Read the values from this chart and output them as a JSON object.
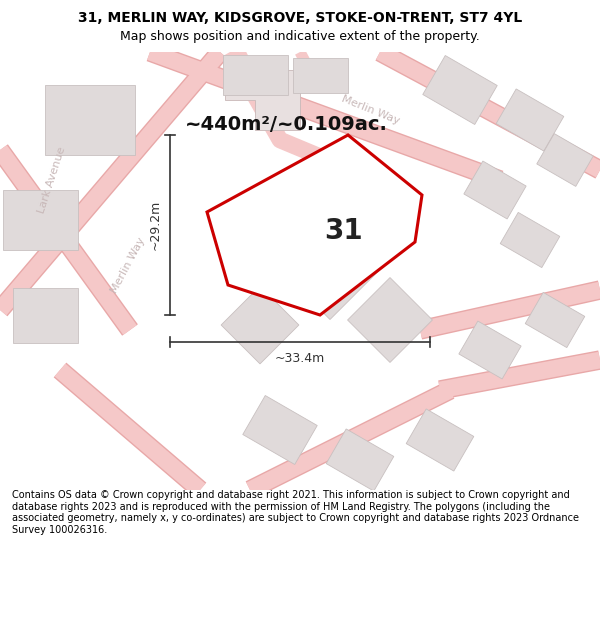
{
  "title_line1": "31, MERLIN WAY, KIDSGROVE, STOKE-ON-TRENT, ST7 4YL",
  "title_line2": "Map shows position and indicative extent of the property.",
  "area_text": "~440m²/~0.109ac.",
  "label_number": "31",
  "dim_width": "~33.4m",
  "dim_height": "~29.2m",
  "footer_text": "Contains OS data © Crown copyright and database right 2021. This information is subject to Crown copyright and database rights 2023 and is reproduced with the permission of HM Land Registry. The polygons (including the associated geometry, namely x, y co-ordinates) are subject to Crown copyright and database rights 2023 Ordnance Survey 100026316.",
  "bg_color": "#ffffff",
  "map_bg": "#fafafa",
  "road_color": "#f5c8c8",
  "building_fill": "#e0dada",
  "building_edge": "#c8c0c0",
  "plot_edge_color": "#cc0000",
  "plot_fill": "#ffffff",
  "label_color": "#c8b8b8",
  "dim_color": "#333333",
  "lark_avenue_label": "Lark Avenue",
  "merlin_way_label_left": "Merlin Way",
  "merlin_way_label_right": "Merlin Way",
  "title_fontsize": 10,
  "subtitle_fontsize": 9,
  "area_fontsize": 14,
  "number_fontsize": 20,
  "dim_fontsize": 9,
  "street_fontsize": 8,
  "footer_fontsize": 7
}
